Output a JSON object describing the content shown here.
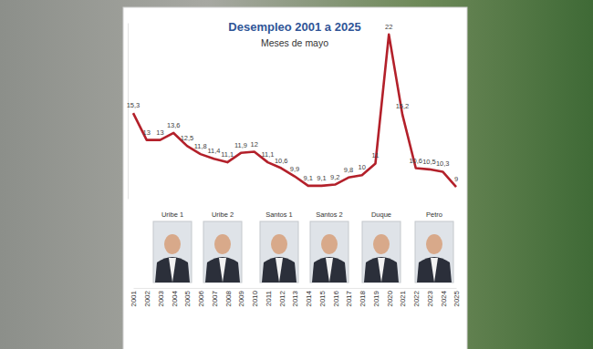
{
  "chart_data": {
    "type": "line",
    "title": "Desempleo 2001 a 2025",
    "subtitle": "Meses de mayo",
    "categories": [
      "2001",
      "2002",
      "2003",
      "2004",
      "2005",
      "2006",
      "2007",
      "2008",
      "2009",
      "2010",
      "2011",
      "2012",
      "2013",
      "2014",
      "2015",
      "2016",
      "2017",
      "2018",
      "2019",
      "2020",
      "2021",
      "2022",
      "2023",
      "2024",
      "2025"
    ],
    "values": [
      15.3,
      13,
      13,
      13.6,
      12.5,
      11.8,
      11.4,
      11.1,
      11.9,
      12,
      11.1,
      10.6,
      9.9,
      9.1,
      9.1,
      9.2,
      9.8,
      10,
      11,
      22,
      15.2,
      10.6,
      10.5,
      10.3,
      9
    ],
    "value_labels": [
      "15,3",
      "13",
      "13",
      "13,6",
      "12,5",
      "11,8",
      "11,4",
      "11,1",
      "11,9",
      "12",
      "11,1",
      "10,6",
      "9,9",
      "9,1",
      "9,1",
      "9,2",
      "9,8",
      "10",
      "11",
      "22",
      "15,2",
      "10,6",
      "10,5",
      "10,3",
      "9"
    ],
    "color": "#b3202a",
    "ylim": [
      8,
      23
    ],
    "data_labels": true,
    "tick_labels": "x",
    "annotations": [
      "Uribe 1",
      "Uribe 2",
      "Santos 1",
      "Santos 2",
      "Duque",
      "Petro"
    ]
  }
}
